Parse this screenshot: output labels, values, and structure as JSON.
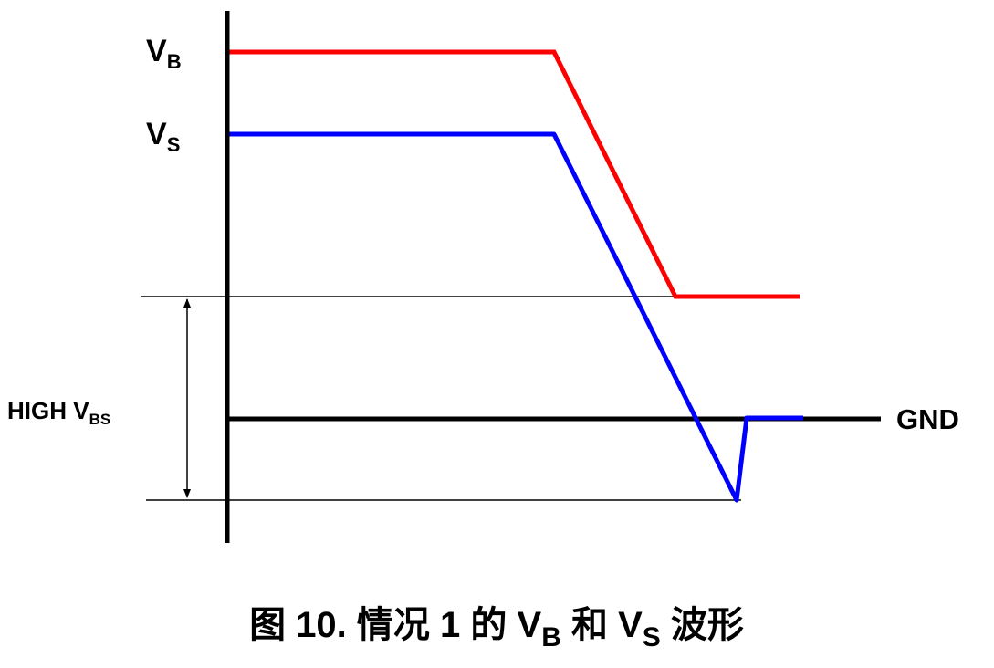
{
  "labels": {
    "vb": {
      "main": "V",
      "sub": "B"
    },
    "vs": {
      "main": "V",
      "sub": "S"
    },
    "high_vbs": {
      "main": "HIGH V",
      "sub": "BS"
    },
    "gnd": "GND"
  },
  "caption": {
    "parts": [
      "图 10. 情况 1 的 V",
      "B",
      " 和 V",
      "S",
      " 波形"
    ]
  }
}
